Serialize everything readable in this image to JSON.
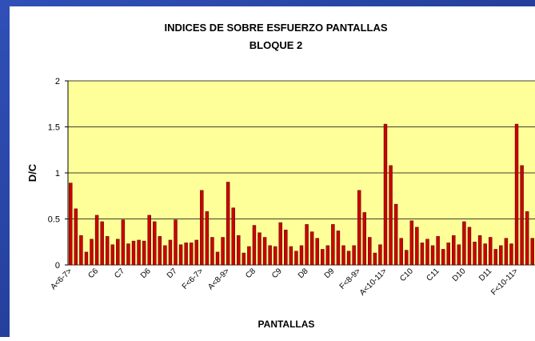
{
  "chart_data": {
    "type": "bar",
    "title": "INDICES DE SOBRE ESFUERZO PANTALLAS",
    "subtitle": "BLOQUE 2",
    "x_label": "PANTALLAS",
    "y_label": "D/C",
    "color": "#cc0000",
    "categories": [
      "A<6-7>",
      null,
      null,
      null,
      null,
      "C6",
      null,
      null,
      null,
      null,
      "C7",
      null,
      null,
      null,
      null,
      "D6",
      null,
      null,
      null,
      null,
      "D7",
      null,
      null,
      null,
      null,
      "F<6-7>",
      null,
      null,
      null,
      null,
      "A<8-9>",
      null,
      null,
      null,
      null,
      "C8",
      null,
      null,
      null,
      null,
      "C9",
      null,
      null,
      null,
      null,
      "D8",
      null,
      null,
      null,
      null,
      "D9",
      null,
      null,
      null,
      null,
      "F<8-9>",
      null,
      null,
      null,
      null,
      "A<10-11>",
      null,
      null,
      null,
      null,
      "C10",
      null,
      null,
      null,
      null,
      "C11",
      null,
      null,
      null,
      null,
      "D10",
      null,
      null,
      null,
      null,
      "D11",
      null,
      null,
      null,
      null,
      "F<10-11>",
      null,
      null,
      null
    ],
    "values": [
      0.89,
      0.61,
      0.32,
      0.14,
      0.28,
      0.54,
      0.47,
      0.31,
      0.22,
      0.28,
      0.49,
      0.23,
      0.26,
      0.27,
      0.26,
      0.54,
      0.47,
      0.31,
      0.21,
      0.27,
      0.49,
      0.22,
      0.24,
      0.24,
      0.27,
      0.81,
      0.58,
      0.3,
      0.14,
      0.3,
      0.9,
      0.62,
      0.32,
      0.13,
      0.2,
      0.43,
      0.35,
      0.3,
      0.21,
      0.2,
      0.46,
      0.38,
      0.2,
      0.15,
      0.21,
      0.44,
      0.36,
      0.29,
      0.17,
      0.21,
      0.44,
      0.37,
      0.21,
      0.15,
      0.21,
      0.81,
      0.57,
      0.3,
      0.13,
      0.22,
      1.53,
      1.08,
      0.66,
      0.29,
      0.16,
      0.48,
      0.41,
      0.24,
      0.28,
      0.21,
      0.31,
      0.17,
      0.24,
      0.32,
      0.22,
      0.47,
      0.41,
      0.25,
      0.32,
      0.23,
      0.3,
      0.17,
      0.21,
      0.29,
      0.23,
      1.53,
      1.08,
      0.58,
      0.29
    ],
    "ylim": [
      0,
      2
    ],
    "yticks": [
      0,
      0.5,
      1,
      1.5,
      2
    ],
    "grid": true
  }
}
